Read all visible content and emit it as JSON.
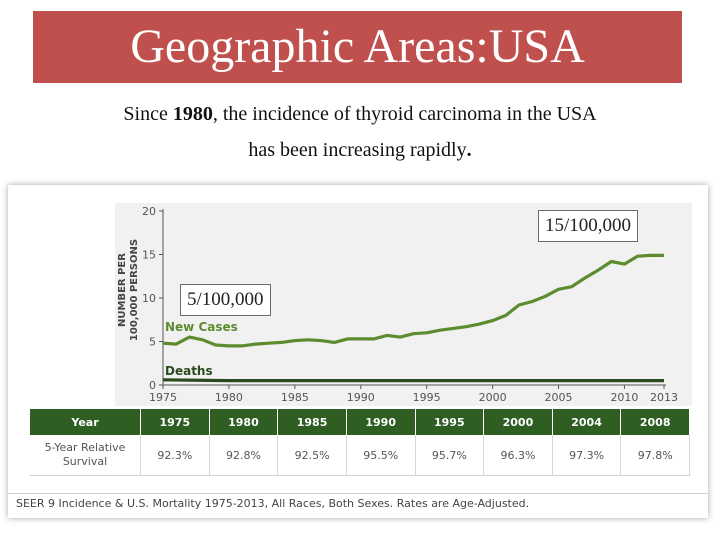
{
  "slide": {
    "title": "Geographic Areas:USA",
    "subtitle_line1_a": "Since ",
    "subtitle_line1_b": "1980",
    "subtitle_line1_c": ",  the  incidence  of thyroid carcinoma in  the  USA",
    "subtitle_line2": "has been increasing rapidly",
    "subtitle_end": "."
  },
  "callouts": {
    "high": "15/100,000",
    "low": "5/100,000"
  },
  "chart_data": {
    "type": "line",
    "ylabel_line1": "NUMBER PER",
    "ylabel_line2": "100,000 PERSONS",
    "xlim": [
      1975,
      2013
    ],
    "ylim": [
      0,
      20
    ],
    "x_ticks": [
      1975,
      1980,
      1985,
      1990,
      1995,
      2000,
      2005,
      2010,
      2013
    ],
    "y_ticks": [
      0,
      5,
      10,
      15,
      20
    ],
    "series": [
      {
        "name": "New Cases",
        "color": "#5d8c2f",
        "x": [
          1975,
          1976,
          1977,
          1978,
          1979,
          1980,
          1981,
          1982,
          1983,
          1984,
          1985,
          1986,
          1987,
          1988,
          1989,
          1990,
          1991,
          1992,
          1993,
          1994,
          1995,
          1996,
          1997,
          1998,
          1999,
          2000,
          2001,
          2002,
          2003,
          2004,
          2005,
          2006,
          2007,
          2008,
          2009,
          2010,
          2011,
          2012,
          2013
        ],
        "values": [
          4.8,
          4.7,
          5.5,
          5.2,
          4.6,
          4.5,
          4.5,
          4.7,
          4.8,
          4.9,
          5.1,
          5.2,
          5.1,
          4.9,
          5.3,
          5.3,
          5.3,
          5.7,
          5.5,
          5.9,
          6.0,
          6.3,
          6.5,
          6.7,
          7.0,
          7.4,
          8.0,
          9.2,
          9.6,
          10.2,
          11.0,
          11.3,
          12.3,
          13.2,
          14.2,
          13.9,
          14.8,
          14.9,
          14.9
        ]
      },
      {
        "name": "Deaths",
        "color": "#2b4a1c",
        "x": [
          1975,
          1980,
          1985,
          1990,
          1995,
          2000,
          2005,
          2010,
          2013
        ],
        "values": [
          0.6,
          0.5,
          0.5,
          0.5,
          0.5,
          0.5,
          0.5,
          0.5,
          0.5
        ]
      }
    ]
  },
  "table": {
    "header_label": "Year",
    "row_label_line1": "5-Year Relative",
    "row_label_line2": "Survival",
    "columns": [
      {
        "year": "1975",
        "value": "92.3%"
      },
      {
        "year": "1980",
        "value": "92.8%"
      },
      {
        "year": "1985",
        "value": "92.5%"
      },
      {
        "year": "1990",
        "value": "95.5%"
      },
      {
        "year": "1995",
        "value": "95.7%"
      },
      {
        "year": "2000",
        "value": "96.3%"
      },
      {
        "year": "2004",
        "value": "97.3%"
      },
      {
        "year": "2008",
        "value": "97.8%"
      }
    ]
  },
  "footnote": "SEER 9 Incidence & U.S. Mortality 1975-2013, All Races, Both Sexes. Rates are Age-Adjusted."
}
